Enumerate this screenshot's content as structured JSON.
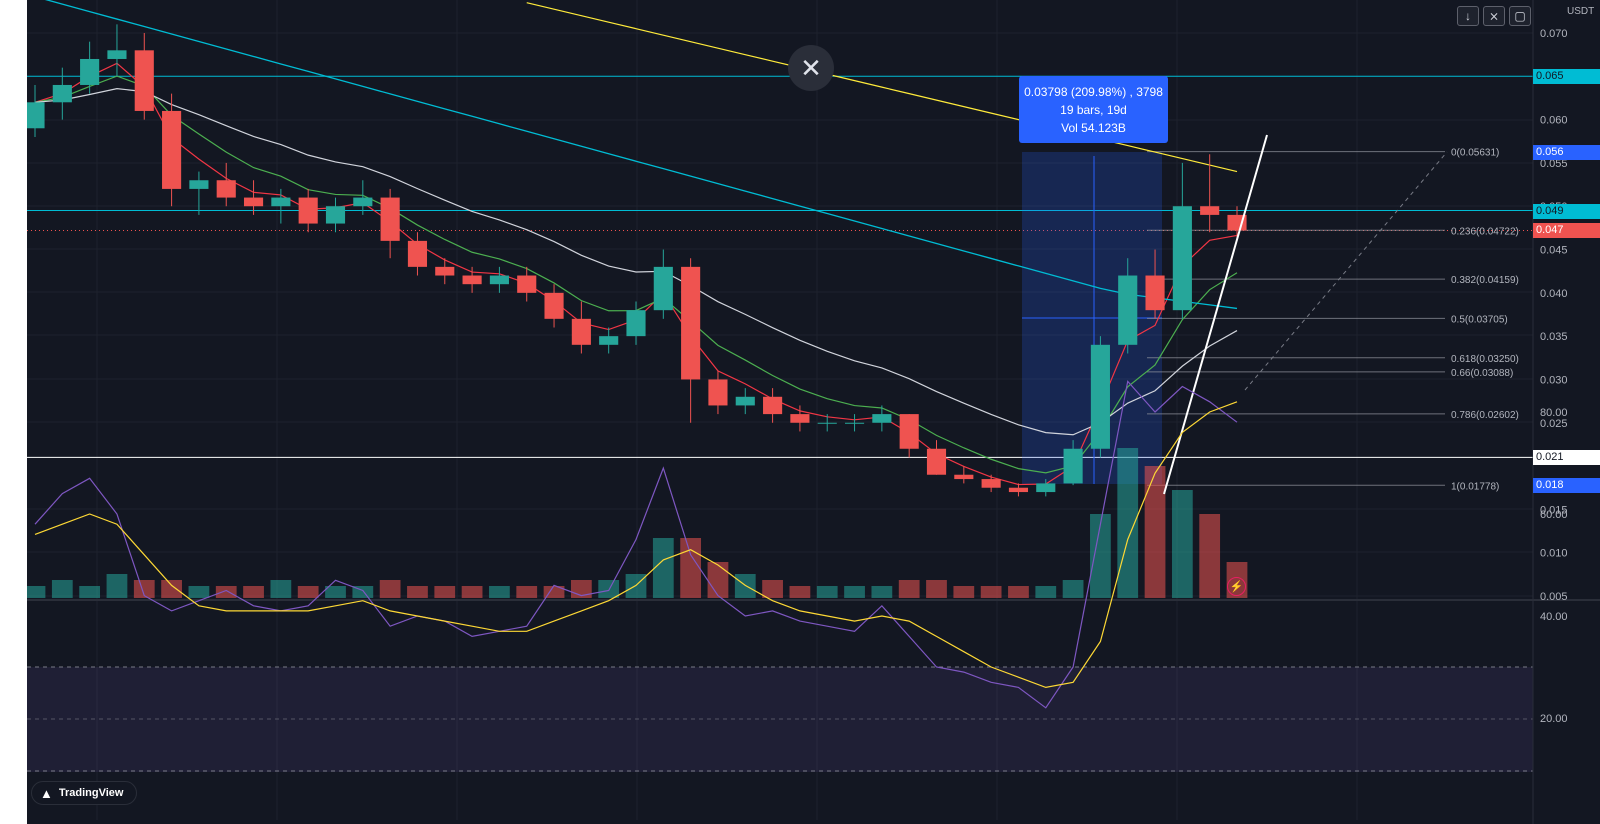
{
  "currency_label": "USDT",
  "colors": {
    "background": "#131722",
    "up": "#26a69a",
    "down": "#ef5350",
    "ema_fast": "#f23645",
    "ema_mid": "#4caf50",
    "ema_slow": "#d1d4dc",
    "ma_cyan": "#00bcd4",
    "ma_yellow": "#ffeb3b",
    "rsi_line": "#7e57c2",
    "rsi_ma": "#fdd835",
    "measure_blue": "#2962ff"
  },
  "toolbar": {
    "icons": [
      "arrow-down-icon",
      "collapse-icon",
      "fullscreen-icon"
    ]
  },
  "measure": {
    "line1": "0.03798 (209.98%) , 3798",
    "line2": "19 bars, 19d",
    "line3": "Vol 54.123B"
  },
  "fib": {
    "levels": [
      {
        "label": "0(0.05631)",
        "value": 0.05631
      },
      {
        "label": "0.236(0.04722)",
        "value": 0.04722
      },
      {
        "label": "0.382(0.04159)",
        "value": 0.04159
      },
      {
        "label": "0.5(0.03705)",
        "value": 0.03705
      },
      {
        "label": "0.618(0.03250)",
        "value": 0.0325
      },
      {
        "label": "0.66(0.03088)",
        "value": 0.03088
      },
      {
        "label": "0.786(0.02602)",
        "value": 0.02602
      },
      {
        "label": "1(0.01778)",
        "value": 0.01778
      }
    ]
  },
  "price_axis": {
    "ticks": [
      "0.070",
      "0.060",
      "0.055",
      "0.050",
      "0.045",
      "0.040",
      "0.035",
      "0.030",
      "0.025",
      "0.015",
      "0.010",
      "0.005"
    ],
    "tags": [
      {
        "text": "0.065",
        "bg": "#00bcd4",
        "fg": "#131722",
        "value": 0.065
      },
      {
        "text": "0.056",
        "bg": "#2962ff",
        "fg": "#ffffff",
        "value": 0.05631
      },
      {
        "text": "0.049",
        "bg": "#00bcd4",
        "fg": "#131722",
        "value": 0.0495
      },
      {
        "text": "0.047",
        "bg": "#ef5350",
        "fg": "#ffffff",
        "value": 0.0472
      },
      {
        "text": "0.021",
        "bg": "#ffffff",
        "fg": "#131722",
        "value": 0.021
      },
      {
        "text": "0.018",
        "bg": "#2962ff",
        "fg": "#ffffff",
        "value": 0.01778
      }
    ]
  },
  "horizontal_lines": [
    {
      "value": 0.065,
      "color": "#00bcd4"
    },
    {
      "value": 0.0495,
      "color": "#00bcd4"
    },
    {
      "value": 0.021,
      "color": "#ffffff"
    }
  ],
  "rsi_axis": {
    "ticks": [
      "80.00",
      "60.00",
      "40.00",
      "20.00"
    ],
    "upper_band": 70,
    "mid_band": 50,
    "lower_band": 30
  },
  "branding": {
    "logo_text": "TradingView"
  },
  "chart_data": {
    "type": "line",
    "title": "",
    "ylabel": "USDT",
    "price_range": [
      0.005,
      0.072
    ],
    "ohlc": [
      [
        0.059,
        0.064,
        0.058,
        0.062
      ],
      [
        0.062,
        0.066,
        0.06,
        0.064
      ],
      [
        0.064,
        0.069,
        0.063,
        0.067
      ],
      [
        0.067,
        0.071,
        0.065,
        0.068
      ],
      [
        0.068,
        0.07,
        0.06,
        0.061
      ],
      [
        0.061,
        0.063,
        0.05,
        0.052
      ],
      [
        0.052,
        0.054,
        0.049,
        0.053
      ],
      [
        0.053,
        0.055,
        0.05,
        0.051
      ],
      [
        0.051,
        0.053,
        0.049,
        0.05
      ],
      [
        0.05,
        0.052,
        0.048,
        0.051
      ],
      [
        0.051,
        0.052,
        0.047,
        0.048
      ],
      [
        0.048,
        0.051,
        0.047,
        0.05
      ],
      [
        0.05,
        0.053,
        0.049,
        0.051
      ],
      [
        0.051,
        0.052,
        0.044,
        0.046
      ],
      [
        0.046,
        0.047,
        0.042,
        0.043
      ],
      [
        0.043,
        0.044,
        0.041,
        0.042
      ],
      [
        0.042,
        0.043,
        0.04,
        0.041
      ],
      [
        0.041,
        0.043,
        0.04,
        0.042
      ],
      [
        0.042,
        0.043,
        0.039,
        0.04
      ],
      [
        0.04,
        0.041,
        0.036,
        0.037
      ],
      [
        0.037,
        0.039,
        0.033,
        0.034
      ],
      [
        0.034,
        0.036,
        0.033,
        0.035
      ],
      [
        0.035,
        0.039,
        0.034,
        0.038
      ],
      [
        0.038,
        0.045,
        0.037,
        0.043
      ],
      [
        0.043,
        0.044,
        0.025,
        0.03
      ],
      [
        0.03,
        0.031,
        0.026,
        0.027
      ],
      [
        0.027,
        0.029,
        0.026,
        0.028
      ],
      [
        0.028,
        0.029,
        0.025,
        0.026
      ],
      [
        0.026,
        0.027,
        0.024,
        0.025
      ],
      [
        0.025,
        0.026,
        0.024,
        0.025
      ],
      [
        0.025,
        0.026,
        0.024,
        0.025
      ],
      [
        0.025,
        0.027,
        0.024,
        0.026
      ],
      [
        0.026,
        0.026,
        0.021,
        0.022
      ],
      [
        0.022,
        0.023,
        0.019,
        0.019
      ],
      [
        0.019,
        0.02,
        0.018,
        0.0185
      ],
      [
        0.0185,
        0.019,
        0.017,
        0.0175
      ],
      [
        0.0175,
        0.018,
        0.0165,
        0.017
      ],
      [
        0.017,
        0.0185,
        0.0165,
        0.018
      ],
      [
        0.018,
        0.023,
        0.0178,
        0.022
      ],
      [
        0.022,
        0.035,
        0.021,
        0.034
      ],
      [
        0.034,
        0.044,
        0.033,
        0.042
      ],
      [
        0.042,
        0.045,
        0.037,
        0.038
      ],
      [
        0.038,
        0.055,
        0.037,
        0.05
      ],
      [
        0.05,
        0.056,
        0.047,
        0.049
      ],
      [
        0.049,
        0.05,
        0.046,
        0.0472
      ]
    ],
    "volume": [
      2,
      3,
      2,
      4,
      3,
      3,
      2,
      2,
      2,
      3,
      2,
      2,
      2,
      3,
      2,
      2,
      2,
      2,
      2,
      2,
      3,
      3,
      4,
      10,
      10,
      6,
      4,
      3,
      2,
      2,
      2,
      2,
      3,
      3,
      2,
      2,
      2,
      2,
      3,
      14,
      25,
      22,
      18,
      14,
      6
    ],
    "rsi": [
      58,
      64,
      67,
      60,
      44,
      41,
      43,
      45,
      42,
      41,
      42,
      47,
      45,
      38,
      40,
      39,
      36,
      37,
      38,
      46,
      44,
      45,
      55,
      69,
      52,
      44,
      40,
      41,
      39,
      38,
      37,
      42,
      36,
      30,
      29,
      27,
      26,
      22,
      30,
      58,
      86,
      80,
      85,
      82,
      78
    ],
    "rsi_ma": [
      56,
      58,
      60,
      58,
      52,
      46,
      42,
      41,
      41,
      41,
      41,
      42,
      43,
      41,
      40,
      39,
      38,
      37,
      37,
      39,
      41,
      43,
      46,
      51,
      53,
      50,
      46,
      43,
      41,
      40,
      39,
      40,
      39,
      36,
      33,
      30,
      28,
      26,
      27,
      35,
      55,
      68,
      76,
      80,
      82
    ]
  }
}
